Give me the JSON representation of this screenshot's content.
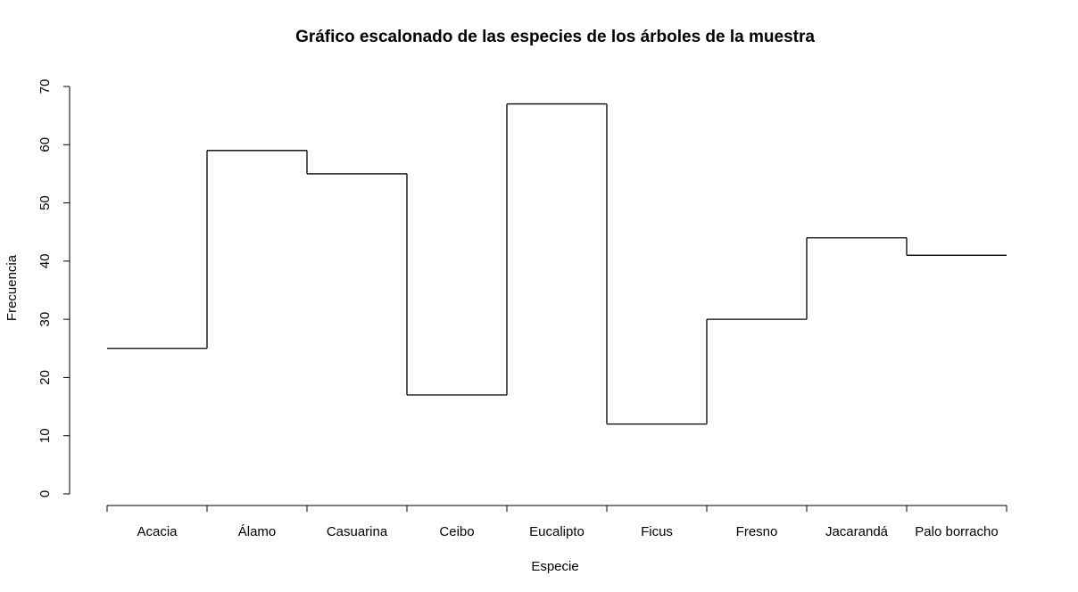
{
  "chart_data": {
    "type": "line",
    "subtype": "step",
    "title": "Gráfico escalonado de las especies de los árboles de la muestra",
    "xlabel": "Especie",
    "ylabel": "Frecuencia",
    "categories": [
      "Acacia",
      "Álamo",
      "Casuarina",
      "Ceibo",
      "Eucalipto",
      "Ficus",
      "Fresno",
      "Jacarandá",
      "Palo borracho"
    ],
    "values": [
      25,
      59,
      55,
      17,
      67,
      12,
      30,
      44,
      41
    ],
    "ylim": [
      0,
      70
    ],
    "yticks": [
      0,
      10,
      20,
      30,
      40,
      50,
      60,
      70
    ],
    "grid": false,
    "line_color": "#000000"
  }
}
